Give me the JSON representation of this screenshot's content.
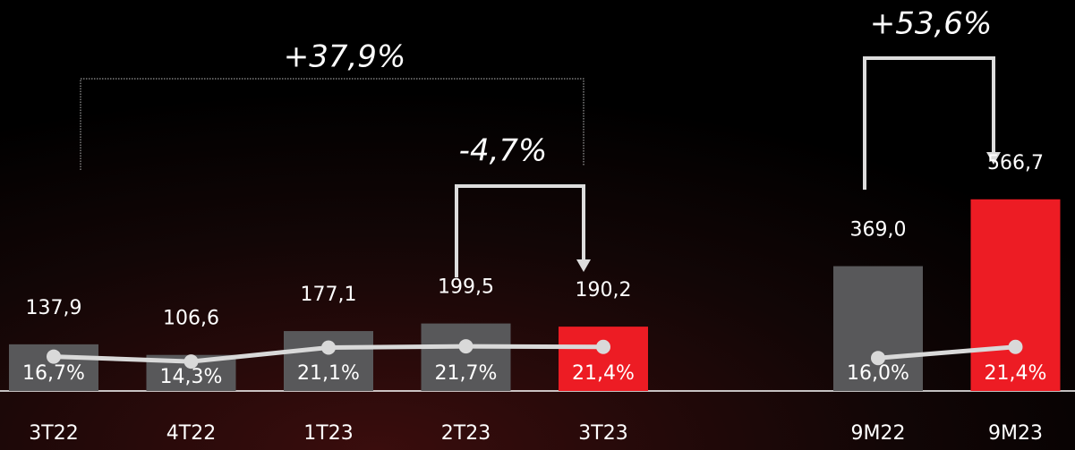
{
  "chart_data": {
    "type": "bar",
    "categories": [
      "3T22",
      "4T22",
      "1T23",
      "2T23",
      "3T23",
      null,
      "9M22",
      "9M23"
    ],
    "series": [
      {
        "values": [
          137.9,
          106.6,
          177.1,
          199.5,
          190.2,
          null,
          369.0,
          566.7
        ],
        "value_labels": [
          "137,9",
          "106,6",
          "177,1",
          "199,5",
          "190,2",
          null,
          "369,0",
          "566,7"
        ],
        "colors": [
          "#58585a",
          "#58585a",
          "#58585a",
          "#58585a",
          "#ed1c24",
          null,
          "#58585a",
          "#ed1c24"
        ]
      },
      {
        "type": "line",
        "axis": "y2",
        "color": "#d9d9d9",
        "values": [
          16.7,
          14.3,
          21.1,
          21.7,
          21.4,
          null,
          16.0,
          21.4
        ],
        "value_labels": [
          "16,7%",
          "14,3%",
          "21,1%",
          "21,7%",
          "21,4%",
          null,
          "16,0%",
          "21,4%"
        ]
      }
    ],
    "ylim": [
      0,
      1156
    ],
    "y2lim": [
      0,
      190
    ],
    "annotations": [
      "+37,9%",
      "-4,7%",
      "+53,6%"
    ]
  }
}
